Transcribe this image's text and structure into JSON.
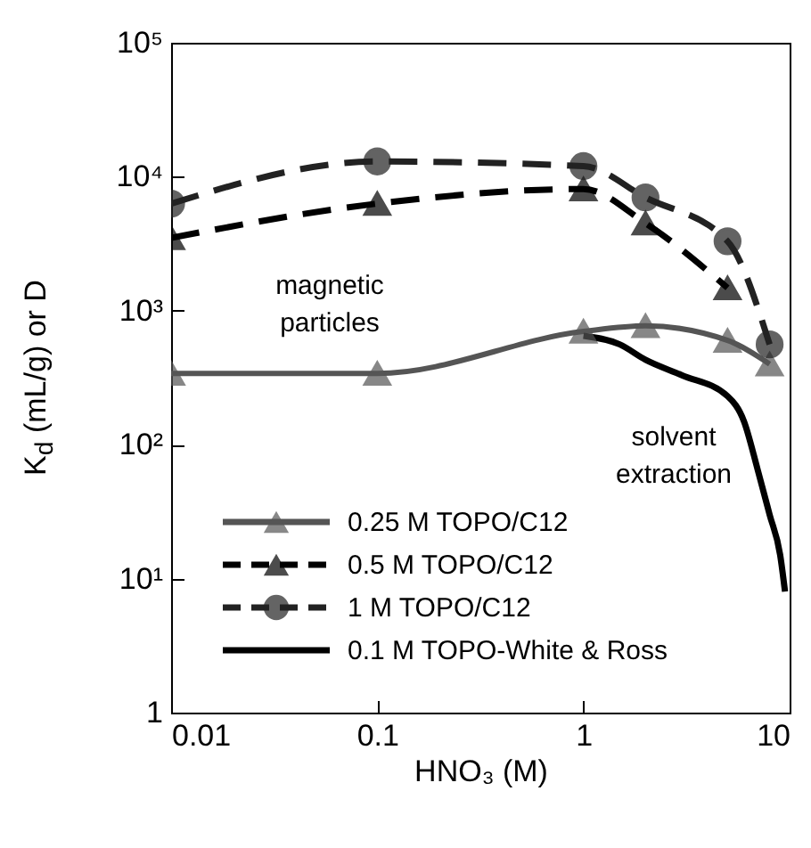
{
  "chart_data": {
    "type": "line",
    "xlabel": "HNO₃ (M)",
    "ylabel": "K$_{d}$ (mL/g) or D",
    "log": "xy",
    "xlim": [
      0.01,
      10
    ],
    "ylim": [
      1,
      100000
    ],
    "xticks": [
      0.01,
      0.1,
      1,
      10
    ],
    "yticks": [
      1,
      {
        "value": 10,
        "label": "10¹"
      },
      {
        "value": 100,
        "label": "10²"
      },
      {
        "value": 1000,
        "label": "10³"
      },
      {
        "value": 10000,
        "label": "10⁴"
      },
      {
        "value": 100000,
        "label": "10⁵"
      }
    ],
    "grid": false,
    "legend": "bottom left",
    "series": [
      {
        "name": "0.25 M TOPO/C12",
        "color": "#555555",
        "marker": "triangle",
        "line_style": "solid",
        "x": [
          0.01,
          0.1,
          1,
          2,
          5,
          8
        ],
        "values": [
          340,
          340,
          700,
          770,
          600,
          400
        ]
      },
      {
        "name": "0.5 M TOPO/C12",
        "color": "#000000",
        "marker": "triangle",
        "line_style": "dashed",
        "x": [
          0.01,
          0.1,
          1,
          2,
          5
        ],
        "values": [
          3500,
          6300,
          8100,
          4500,
          1480
        ]
      },
      {
        "name": "1 M TOPO/C12",
        "color": "#222222",
        "marker": "circle",
        "line_style": "dashed",
        "x": [
          0.01,
          0.1,
          1,
          2,
          5,
          8
        ],
        "values": [
          6300,
          13000,
          12000,
          7000,
          3300,
          560
        ]
      },
      {
        "name": "0.1 M TOPO-White & Ross",
        "color": "#000000",
        "marker": "none",
        "line_style": "solid",
        "x": [
          1,
          1.5,
          2,
          3,
          5,
          6,
          7,
          8,
          9,
          9.5
        ],
        "values": [
          650,
          560,
          430,
          330,
          230,
          150,
          65,
          30,
          15,
          8
        ]
      }
    ],
    "annotations": [
      "magnetic particles",
      "solvent extraction"
    ]
  }
}
